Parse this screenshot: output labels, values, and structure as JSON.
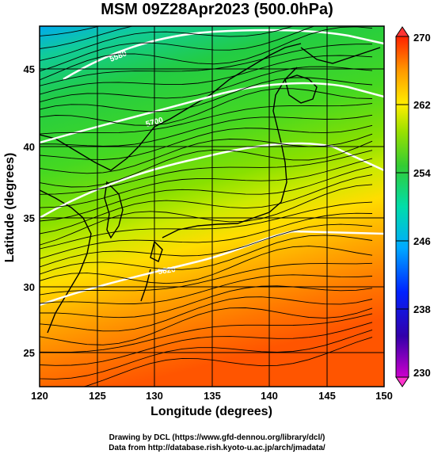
{
  "title": "MSM 09Z28Apr2023 (500.0hPa)",
  "x_axis": {
    "label": "Longitude (degrees)",
    "ticks": [
      "120",
      "125",
      "130",
      "135",
      "140",
      "145",
      "150"
    ]
  },
  "y_axis": {
    "label": "Latitude  (degrees)",
    "ticks": [
      "45",
      "40",
      "35",
      "30",
      "25"
    ]
  },
  "colorbar": {
    "ticks": [
      "270",
      "262",
      "254",
      "246",
      "238",
      "230"
    ],
    "colors": [
      "#ff00cc",
      "#3300cc",
      "#0044ff",
      "#00aaff",
      "#00dddd",
      "#22cc66",
      "#44dd22",
      "#aaee00",
      "#ffee00",
      "#ffbb00",
      "#ff8800",
      "#ff3300"
    ]
  },
  "contour_labels": [
    "5580",
    "5700",
    "5820"
  ],
  "credits": [
    "Drawing by DCL (https://www.gfd-dennou.org/library/dcl/)",
    "Data from http://database.rish.kyoto-u.ac.jp/arch/jmadata/"
  ],
  "map": {
    "lon_range": [
      120,
      150
    ],
    "lat_range": [
      22.5,
      48
    ],
    "field": "temperature (K)",
    "overlays": [
      "coastlines",
      "wind streamlines",
      "geopotential height contours"
    ]
  }
}
